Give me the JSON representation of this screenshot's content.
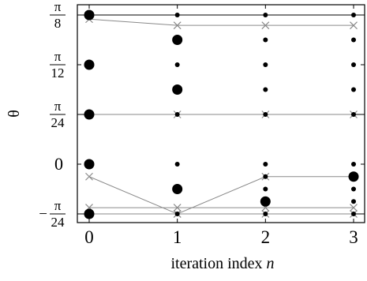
{
  "chart_data": {
    "type": "scatter",
    "title": "",
    "xlabel": "iteration index",
    "xlabel_var": "n",
    "ylabel": "θ",
    "xlim": [
      -0.15,
      3.15
    ],
    "ylim": [
      -0.1309,
      0.3927
    ],
    "x_ticks": [
      {
        "value": 0,
        "label": "0"
      },
      {
        "value": 1,
        "label": "1"
      },
      {
        "value": 2,
        "label": "2"
      },
      {
        "value": 3,
        "label": "3"
      }
    ],
    "y_ticks": [
      {
        "value": 0.3927,
        "num": "π",
        "den": "8"
      },
      {
        "value": 0.2618,
        "num": "π",
        "den": "12"
      },
      {
        "value": 0.1309,
        "num": "π",
        "den": "24"
      },
      {
        "value": 0,
        "label": "0"
      },
      {
        "value": -0.1309,
        "sign": "−",
        "num": "π",
        "den": "24"
      }
    ],
    "horizontal_lines": [
      0.3927,
      0.1309,
      -0.1309
    ],
    "points": [
      {
        "x": 0,
        "y": 0.3927,
        "size": "large"
      },
      {
        "x": 0,
        "y": 0.2618,
        "size": "large"
      },
      {
        "x": 0,
        "y": 0.1309,
        "size": "large"
      },
      {
        "x": 0,
        "y": 0,
        "size": "large"
      },
      {
        "x": 0,
        "y": -0.1309,
        "size": "large"
      },
      {
        "x": 1,
        "y": 0.3927,
        "size": "small"
      },
      {
        "x": 1,
        "y": 0.3272,
        "size": "large"
      },
      {
        "x": 1,
        "y": 0.2618,
        "size": "small"
      },
      {
        "x": 1,
        "y": 0.1963,
        "size": "large"
      },
      {
        "x": 1,
        "y": 0.1309,
        "size": "small"
      },
      {
        "x": 1,
        "y": 0,
        "size": "small"
      },
      {
        "x": 1,
        "y": -0.0654,
        "size": "large"
      },
      {
        "x": 1,
        "y": -0.1309,
        "size": "small"
      },
      {
        "x": 2,
        "y": 0.3927,
        "size": "small"
      },
      {
        "x": 2,
        "y": 0.3272,
        "size": "small"
      },
      {
        "x": 2,
        "y": 0.2618,
        "size": "small"
      },
      {
        "x": 2,
        "y": 0.1963,
        "size": "small"
      },
      {
        "x": 2,
        "y": 0.1309,
        "size": "small"
      },
      {
        "x": 2,
        "y": 0,
        "size": "small"
      },
      {
        "x": 2,
        "y": -0.0327,
        "size": "small"
      },
      {
        "x": 2,
        "y": -0.0654,
        "size": "small"
      },
      {
        "x": 2,
        "y": -0.0982,
        "size": "large"
      },
      {
        "x": 2,
        "y": -0.1309,
        "size": "small"
      },
      {
        "x": 3,
        "y": 0.3927,
        "size": "small"
      },
      {
        "x": 3,
        "y": 0.3272,
        "size": "small"
      },
      {
        "x": 3,
        "y": 0.2618,
        "size": "small"
      },
      {
        "x": 3,
        "y": 0.1963,
        "size": "small"
      },
      {
        "x": 3,
        "y": 0.1309,
        "size": "small"
      },
      {
        "x": 3,
        "y": 0,
        "size": "small"
      },
      {
        "x": 3,
        "y": -0.0327,
        "size": "large"
      },
      {
        "x": 3,
        "y": -0.0654,
        "size": "small"
      },
      {
        "x": 3,
        "y": -0.0982,
        "size": "small"
      },
      {
        "x": 3,
        "y": -0.1309,
        "size": "small"
      }
    ],
    "trajectories": [
      {
        "values": [
          0.3818,
          0.3654,
          0.3654,
          0.3654
        ]
      },
      {
        "values": [
          0.1309,
          0.1309,
          0.1309,
          0.1309
        ]
      },
      {
        "values": [
          -0.0327,
          -0.1309,
          -0.0327,
          -0.0327
        ]
      },
      {
        "values": [
          -0.1145,
          -0.1145,
          -0.1145,
          -0.1145
        ]
      },
      {
        "values": [
          -0.1309,
          -0.1309,
          -0.1309,
          -0.1309
        ]
      }
    ],
    "colors": {
      "points": "#000000",
      "trajectory": "#8a8a8a",
      "axes": "#000000"
    }
  }
}
